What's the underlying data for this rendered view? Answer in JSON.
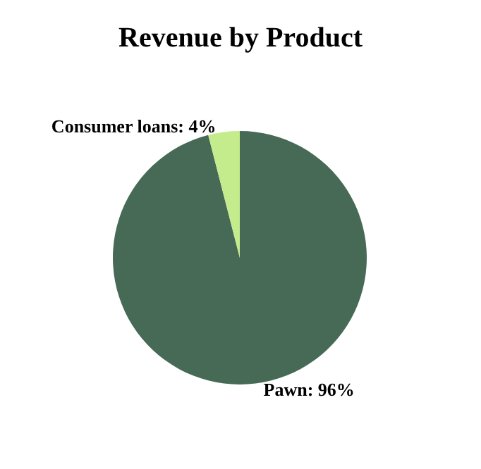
{
  "chart_data": {
    "type": "pie",
    "title": "Revenue by Product",
    "categories": [
      "Pawn",
      "Consumer loans"
    ],
    "values": [
      96,
      4
    ],
    "value_labels": [
      ": 96%",
      ": 4%"
    ],
    "colors": [
      "#466a55",
      "#c5ec8c"
    ],
    "legend": false
  }
}
